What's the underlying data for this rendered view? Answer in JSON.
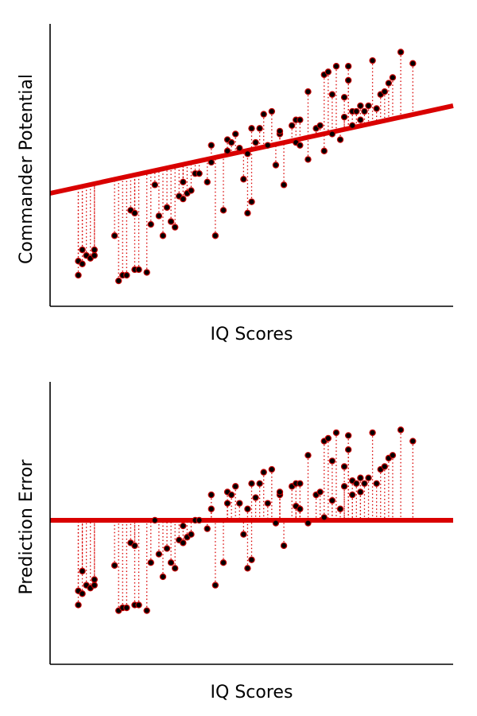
{
  "chart_data": [
    {
      "type": "scatter",
      "title": "",
      "xlabel": "IQ Scores",
      "ylabel": "Commander Potential",
      "xlim": [
        0,
        100
      ],
      "ylim": [
        0,
        100
      ],
      "grid": false,
      "colors": {
        "points": "#000000",
        "point_edge": "#c40000",
        "line": "#d90000",
        "residuals": "#d90000"
      },
      "fit_line": {
        "intercept": 40,
        "slope": 0.31
      },
      "residual_lines": true,
      "points": [
        {
          "x": 7,
          "y": 16
        },
        {
          "x": 7,
          "y": 11
        },
        {
          "x": 8,
          "y": 20
        },
        {
          "x": 8,
          "y": 15
        },
        {
          "x": 9,
          "y": 18
        },
        {
          "x": 10,
          "y": 17
        },
        {
          "x": 11,
          "y": 20
        },
        {
          "x": 11,
          "y": 18
        },
        {
          "x": 16,
          "y": 25
        },
        {
          "x": 17,
          "y": 9
        },
        {
          "x": 18,
          "y": 11
        },
        {
          "x": 19,
          "y": 11
        },
        {
          "x": 20,
          "y": 34
        },
        {
          "x": 21,
          "y": 33
        },
        {
          "x": 21,
          "y": 13
        },
        {
          "x": 22,
          "y": 13
        },
        {
          "x": 24,
          "y": 12
        },
        {
          "x": 25,
          "y": 29
        },
        {
          "x": 26,
          "y": 43
        },
        {
          "x": 27,
          "y": 32
        },
        {
          "x": 28,
          "y": 25
        },
        {
          "x": 29,
          "y": 35
        },
        {
          "x": 30,
          "y": 30
        },
        {
          "x": 31,
          "y": 28
        },
        {
          "x": 32,
          "y": 39
        },
        {
          "x": 33,
          "y": 38
        },
        {
          "x": 33,
          "y": 44
        },
        {
          "x": 34,
          "y": 40
        },
        {
          "x": 35,
          "y": 41
        },
        {
          "x": 36,
          "y": 47
        },
        {
          "x": 37,
          "y": 47
        },
        {
          "x": 39,
          "y": 44
        },
        {
          "x": 40,
          "y": 51
        },
        {
          "x": 40,
          "y": 57
        },
        {
          "x": 41,
          "y": 25
        },
        {
          "x": 43,
          "y": 34
        },
        {
          "x": 44,
          "y": 59
        },
        {
          "x": 44,
          "y": 55
        },
        {
          "x": 45,
          "y": 58
        },
        {
          "x": 46,
          "y": 61
        },
        {
          "x": 47,
          "y": 56
        },
        {
          "x": 48,
          "y": 45
        },
        {
          "x": 49,
          "y": 54
        },
        {
          "x": 49,
          "y": 33
        },
        {
          "x": 50,
          "y": 37
        },
        {
          "x": 50,
          "y": 63
        },
        {
          "x": 51,
          "y": 58
        },
        {
          "x": 52,
          "y": 63
        },
        {
          "x": 53,
          "y": 68
        },
        {
          "x": 54,
          "y": 57
        },
        {
          "x": 55,
          "y": 69
        },
        {
          "x": 56,
          "y": 50
        },
        {
          "x": 57,
          "y": 61
        },
        {
          "x": 57,
          "y": 62
        },
        {
          "x": 58,
          "y": 43
        },
        {
          "x": 60,
          "y": 64
        },
        {
          "x": 61,
          "y": 58
        },
        {
          "x": 61,
          "y": 66
        },
        {
          "x": 62,
          "y": 66
        },
        {
          "x": 62,
          "y": 57
        },
        {
          "x": 64,
          "y": 52
        },
        {
          "x": 64,
          "y": 76
        },
        {
          "x": 66,
          "y": 63
        },
        {
          "x": 67,
          "y": 64
        },
        {
          "x": 68,
          "y": 55
        },
        {
          "x": 68,
          "y": 82
        },
        {
          "x": 69,
          "y": 83
        },
        {
          "x": 70,
          "y": 61
        },
        {
          "x": 70,
          "y": 75
        },
        {
          "x": 71,
          "y": 85
        },
        {
          "x": 72,
          "y": 59
        },
        {
          "x": 73,
          "y": 67
        },
        {
          "x": 73,
          "y": 74
        },
        {
          "x": 74,
          "y": 85
        },
        {
          "x": 74,
          "y": 80
        },
        {
          "x": 75,
          "y": 69
        },
        {
          "x": 75,
          "y": 64
        },
        {
          "x": 76,
          "y": 69
        },
        {
          "x": 77,
          "y": 71
        },
        {
          "x": 77,
          "y": 66
        },
        {
          "x": 78,
          "y": 69
        },
        {
          "x": 79,
          "y": 71
        },
        {
          "x": 80,
          "y": 87
        },
        {
          "x": 81,
          "y": 70
        },
        {
          "x": 82,
          "y": 75
        },
        {
          "x": 83,
          "y": 76
        },
        {
          "x": 84,
          "y": 79
        },
        {
          "x": 85,
          "y": 81
        },
        {
          "x": 87,
          "y": 90
        },
        {
          "x": 90,
          "y": 86
        }
      ]
    },
    {
      "type": "scatter",
      "title": "",
      "xlabel": "IQ Scores",
      "ylabel": "Prediction Error",
      "xlim": [
        0,
        100
      ],
      "ylim": [
        0,
        100
      ],
      "grid": false,
      "colors": {
        "points": "#000000",
        "point_edge": "#c40000",
        "line": "#d90000",
        "residuals": "#d90000"
      },
      "fit_line": {
        "intercept": 51,
        "slope": 0
      },
      "residual_lines": true,
      "points": [
        {
          "x": 7,
          "y": 26
        },
        {
          "x": 7,
          "y": 21
        },
        {
          "x": 8,
          "y": 33
        },
        {
          "x": 8,
          "y": 25
        },
        {
          "x": 9,
          "y": 28
        },
        {
          "x": 10,
          "y": 27
        },
        {
          "x": 11,
          "y": 30
        },
        {
          "x": 11,
          "y": 28
        },
        {
          "x": 16,
          "y": 35
        },
        {
          "x": 17,
          "y": 19
        },
        {
          "x": 18,
          "y": 20
        },
        {
          "x": 19,
          "y": 20
        },
        {
          "x": 20,
          "y": 43
        },
        {
          "x": 21,
          "y": 42
        },
        {
          "x": 21,
          "y": 21
        },
        {
          "x": 22,
          "y": 21
        },
        {
          "x": 24,
          "y": 19
        },
        {
          "x": 25,
          "y": 36
        },
        {
          "x": 26,
          "y": 51
        },
        {
          "x": 27,
          "y": 39
        },
        {
          "x": 28,
          "y": 31
        },
        {
          "x": 29,
          "y": 41
        },
        {
          "x": 30,
          "y": 36
        },
        {
          "x": 31,
          "y": 34
        },
        {
          "x": 32,
          "y": 44
        },
        {
          "x": 33,
          "y": 43
        },
        {
          "x": 33,
          "y": 49
        },
        {
          "x": 34,
          "y": 45
        },
        {
          "x": 35,
          "y": 46
        },
        {
          "x": 36,
          "y": 51
        },
        {
          "x": 37,
          "y": 51
        },
        {
          "x": 39,
          "y": 48
        },
        {
          "x": 40,
          "y": 55
        },
        {
          "x": 40,
          "y": 60
        },
        {
          "x": 41,
          "y": 28
        },
        {
          "x": 43,
          "y": 36
        },
        {
          "x": 44,
          "y": 61
        },
        {
          "x": 44,
          "y": 57
        },
        {
          "x": 45,
          "y": 60
        },
        {
          "x": 46,
          "y": 63
        },
        {
          "x": 47,
          "y": 57
        },
        {
          "x": 48,
          "y": 46
        },
        {
          "x": 49,
          "y": 55
        },
        {
          "x": 49,
          "y": 34
        },
        {
          "x": 50,
          "y": 37
        },
        {
          "x": 50,
          "y": 64
        },
        {
          "x": 51,
          "y": 59
        },
        {
          "x": 52,
          "y": 64
        },
        {
          "x": 53,
          "y": 68
        },
        {
          "x": 54,
          "y": 57
        },
        {
          "x": 55,
          "y": 69
        },
        {
          "x": 56,
          "y": 50
        },
        {
          "x": 57,
          "y": 60
        },
        {
          "x": 57,
          "y": 61
        },
        {
          "x": 58,
          "y": 42
        },
        {
          "x": 60,
          "y": 63
        },
        {
          "x": 61,
          "y": 56
        },
        {
          "x": 61,
          "y": 64
        },
        {
          "x": 62,
          "y": 64
        },
        {
          "x": 62,
          "y": 55
        },
        {
          "x": 64,
          "y": 50
        },
        {
          "x": 64,
          "y": 74
        },
        {
          "x": 66,
          "y": 60
        },
        {
          "x": 67,
          "y": 61
        },
        {
          "x": 68,
          "y": 52
        },
        {
          "x": 68,
          "y": 79
        },
        {
          "x": 69,
          "y": 80
        },
        {
          "x": 70,
          "y": 58
        },
        {
          "x": 70,
          "y": 72
        },
        {
          "x": 71,
          "y": 82
        },
        {
          "x": 72,
          "y": 55
        },
        {
          "x": 73,
          "y": 63
        },
        {
          "x": 73,
          "y": 70
        },
        {
          "x": 74,
          "y": 81
        },
        {
          "x": 74,
          "y": 76
        },
        {
          "x": 75,
          "y": 65
        },
        {
          "x": 75,
          "y": 60
        },
        {
          "x": 76,
          "y": 64
        },
        {
          "x": 77,
          "y": 66
        },
        {
          "x": 77,
          "y": 61
        },
        {
          "x": 78,
          "y": 64
        },
        {
          "x": 79,
          "y": 66
        },
        {
          "x": 80,
          "y": 82
        },
        {
          "x": 81,
          "y": 64
        },
        {
          "x": 82,
          "y": 69
        },
        {
          "x": 83,
          "y": 70
        },
        {
          "x": 84,
          "y": 73
        },
        {
          "x": 85,
          "y": 74
        },
        {
          "x": 87,
          "y": 83
        },
        {
          "x": 90,
          "y": 79
        }
      ]
    }
  ]
}
